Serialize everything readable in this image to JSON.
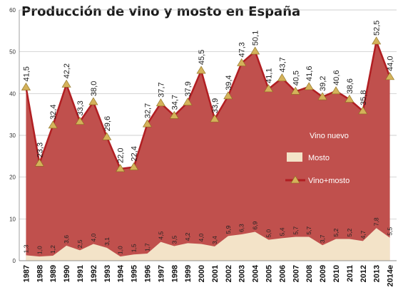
{
  "chart_data": {
    "type": "area",
    "title": "Producción de vino y mosto en España",
    "categories": [
      "1987",
      "1988",
      "1989",
      "1990",
      "1991",
      "1992",
      "1993",
      "1994",
      "1995",
      "1996",
      "1997",
      "1998",
      "1999",
      "2000",
      "2001",
      "2002",
      "2003",
      "2004",
      "2005",
      "2006",
      "2007",
      "2008",
      "2009",
      "2010",
      "2011",
      "2012",
      "2013",
      "2014e"
    ],
    "series": [
      {
        "name": "Vino+mosto",
        "kind": "line-with-markers",
        "color": "#b11e22",
        "values": [
          41.5,
          23.3,
          32.4,
          42.2,
          33.3,
          38.0,
          29.6,
          22.0,
          22.4,
          32.7,
          37.7,
          34.7,
          37.9,
          45.5,
          33.9,
          39.4,
          47.3,
          50.1,
          41.1,
          43.7,
          40.5,
          41.6,
          39.2,
          40.6,
          38.6,
          35.8,
          52.5,
          44.0
        ],
        "labels": [
          "41,5",
          "23,3",
          "32,4",
          "42,2",
          "33,3",
          "38,0",
          "29,6",
          "22,0",
          "22,4",
          "32,7",
          "37,7",
          "34,7",
          "37,9",
          "45,5",
          "33,9",
          "39,4",
          "47,3",
          "50,1",
          "41,1",
          "43,7",
          "40,5",
          "41,6",
          "39,2",
          "40,6",
          "38,6",
          "35,8",
          "52,5",
          "44,0"
        ]
      },
      {
        "name": "Mosto",
        "kind": "area",
        "color": "#f3e3c8",
        "values": [
          1.3,
          1.0,
          1.2,
          3.6,
          2.5,
          4.0,
          3.1,
          1.0,
          1.5,
          1.7,
          4.5,
          3.5,
          4.2,
          4.0,
          3.4,
          5.9,
          6.3,
          6.9,
          5.0,
          5.4,
          5.7,
          5.7,
          3.7,
          5.2,
          5.2,
          4.7,
          7.8,
          5.5
        ],
        "labels": [
          "1,3",
          "1,0",
          "1,2",
          "3,6",
          "2,5",
          "4,0",
          "3,1",
          "1,0",
          "1,5",
          "1,7",
          "4,5",
          "3,5",
          "4,2",
          "4,0",
          "3,4",
          "5,9",
          "6,3",
          "6,9",
          "5,0",
          "5,4",
          "5,7",
          "5,7",
          "3,7",
          "5,2",
          "5,2",
          "4,7",
          "7,8",
          "5,5"
        ]
      },
      {
        "name": "Vino nuevo",
        "kind": "area",
        "color": "#c0504d"
      }
    ],
    "ylim": [
      0,
      60
    ],
    "yticks": [
      0,
      10,
      20,
      30,
      40,
      50,
      60
    ],
    "grid": true,
    "legend": "right-middle",
    "colors": {
      "vino_area": "#c0504d",
      "line": "#b11e22",
      "marker": "#d4b25a",
      "mosto_area": "#f3e3c8",
      "grid": "#bfbfbf"
    }
  }
}
